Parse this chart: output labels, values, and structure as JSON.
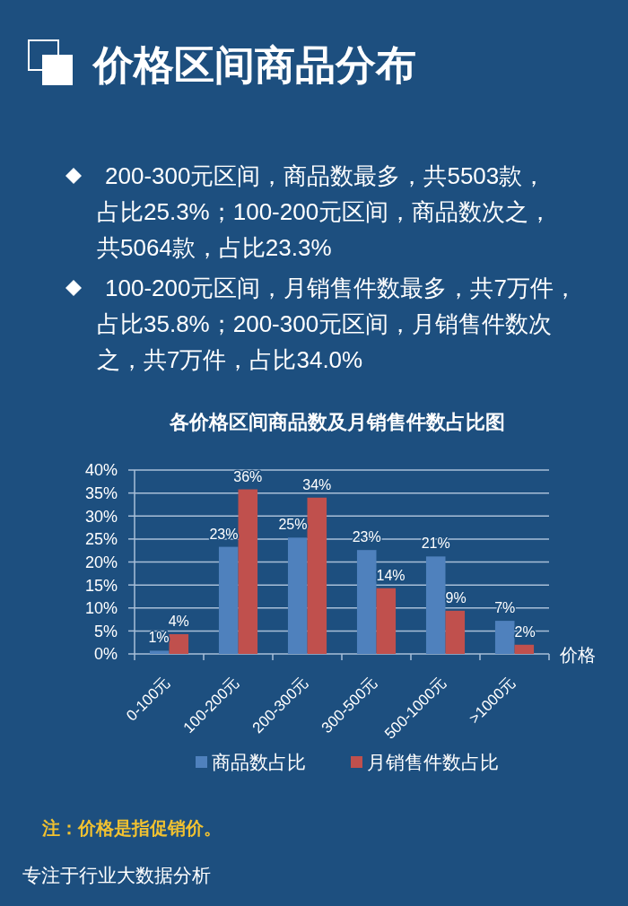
{
  "chart_data": {
    "type": "bar",
    "title": "价格区间商品分布",
    "subtitle": "各价格区间商品数及月销售件数占比图",
    "xlabel": "价格",
    "categories": [
      "0-100元",
      "100-200元",
      "200-300元",
      "300-500元",
      "500-1000元",
      ">1000元"
    ],
    "series": [
      {
        "name": "商品数占比",
        "color": "#4f81bd",
        "values": [
          0.7,
          23.3,
          25.3,
          22.6,
          21.2,
          7.2
        ],
        "value_labels": [
          "1%",
          "23%",
          "25%",
          "23%",
          "21%",
          "7%"
        ]
      },
      {
        "name": "月销售件数占比",
        "color": "#c0504d",
        "values": [
          4.3,
          35.8,
          34.0,
          14.3,
          9.4,
          2.0
        ],
        "value_labels": [
          "4%",
          "36%",
          "34%",
          "14%",
          "9%",
          "2%"
        ]
      }
    ],
    "ylim": [
      0,
      40
    ],
    "yticks": [
      {
        "value": 0,
        "label": "0%"
      },
      {
        "value": 5,
        "label": "5%"
      },
      {
        "value": 10,
        "label": "10%"
      },
      {
        "value": 15,
        "label": "15%"
      },
      {
        "value": 20,
        "label": "20%"
      },
      {
        "value": 25,
        "label": "25%"
      },
      {
        "value": 30,
        "label": "30%"
      },
      {
        "value": 35,
        "label": "35%"
      },
      {
        "value": 40,
        "label": "40%"
      }
    ],
    "grid": "y",
    "legend": "bottom",
    "annotations": [
      "200-300元区间，商品数最多，共5503款，占比25.3%；100-200元区间，商品数次之，共5064款，占比23.3%",
      "100-200元区间，月销售件数最多，共7万件，占比35.8%；200-300元区间，月销售件数次之，共7万件，占比34.0%",
      "注：价格是指促销价。",
      "专注于行业大数据分析"
    ]
  }
}
